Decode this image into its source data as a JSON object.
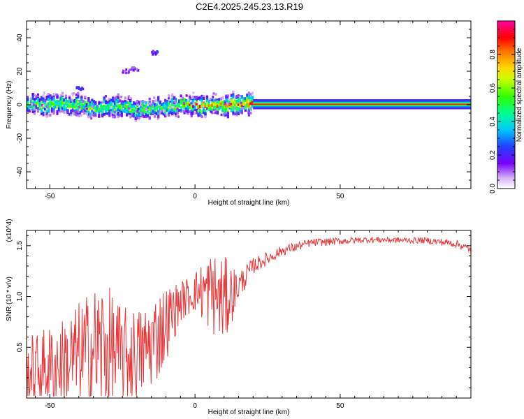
{
  "title": "C2E4.2025.245.23.13.R19",
  "chart_data": [
    {
      "type": "heatmap",
      "xlabel": "Height of straight line (km)",
      "ylabel": "Frequency (Hz)",
      "xlim": [
        -58,
        95
      ],
      "ylim": [
        -50,
        50
      ],
      "xticks": [
        -50,
        0,
        50
      ],
      "yticks": [
        -40,
        -20,
        0,
        20,
        40
      ],
      "colorbar": {
        "label": "Normalized spectral amplitude",
        "range": [
          0,
          1
        ],
        "ticks": [
          "0.0",
          "0.2",
          "0.4",
          "0.6",
          "0.8"
        ]
      },
      "ridge": [
        {
          "x": -58,
          "f": 0.0
        },
        {
          "x": -50,
          "f": 0.5
        },
        {
          "x": -42,
          "f": 0.0
        },
        {
          "x": -35,
          "f": -2.0
        },
        {
          "x": -28,
          "f": -1.0
        },
        {
          "x": -20,
          "f": -3.0
        },
        {
          "x": -15,
          "f": -2.5
        },
        {
          "x": -10,
          "f": -1.5
        },
        {
          "x": -5,
          "f": 0.0
        },
        {
          "x": 0,
          "f": 0.0
        },
        {
          "x": 5,
          "f": -0.5
        },
        {
          "x": 10,
          "f": 0.0
        },
        {
          "x": 20,
          "f": 0.3
        },
        {
          "x": 40,
          "f": 0.3
        },
        {
          "x": 95,
          "f": 0.3
        }
      ],
      "blobs": [
        {
          "x": -24,
          "f": 20,
          "amp": 0.15
        },
        {
          "x": -21,
          "f": 21,
          "amp": 0.15
        },
        {
          "x": -14,
          "f": 31,
          "amp": 0.2
        },
        {
          "x": -40,
          "f": 10,
          "amp": 0.2
        }
      ]
    },
    {
      "type": "line",
      "xlabel": "Height of straight line (km)",
      "ylabel": "SNR (10 * v/v)",
      "yscale_label": "(x10^4)",
      "xlim": [
        -58,
        95
      ],
      "ylim": [
        0,
        1.65
      ],
      "xticks": [
        -50,
        0,
        50
      ],
      "yticks": [
        0.5,
        1.0,
        1.5
      ],
      "series": [
        {
          "color": "#e8383a",
          "envelope": [
            {
              "x": -58,
              "base": 0.25,
              "amp": 0.35
            },
            {
              "x": -45,
              "base": 0.35,
              "amp": 0.45
            },
            {
              "x": -32,
              "base": 0.5,
              "amp": 0.7
            },
            {
              "x": -25,
              "base": 0.4,
              "amp": 0.5
            },
            {
              "x": -18,
              "base": 0.45,
              "amp": 0.45
            },
            {
              "x": -12,
              "base": 0.65,
              "amp": 0.45
            },
            {
              "x": -5,
              "base": 0.95,
              "amp": 0.2
            },
            {
              "x": 0,
              "base": 1.05,
              "amp": 0.2
            },
            {
              "x": 5,
              "base": 1.05,
              "amp": 0.4
            },
            {
              "x": 10,
              "base": 0.95,
              "amp": 0.45
            },
            {
              "x": 15,
              "base": 1.1,
              "amp": 0.15
            },
            {
              "x": 20,
              "base": 1.3,
              "amp": 0.08
            },
            {
              "x": 30,
              "base": 1.45,
              "amp": 0.05
            },
            {
              "x": 40,
              "base": 1.53,
              "amp": 0.04
            },
            {
              "x": 60,
              "base": 1.56,
              "amp": 0.03
            },
            {
              "x": 80,
              "base": 1.55,
              "amp": 0.03
            },
            {
              "x": 90,
              "base": 1.52,
              "amp": 0.04
            },
            {
              "x": 95,
              "base": 1.46,
              "amp": 0.04
            }
          ]
        }
      ]
    }
  ]
}
